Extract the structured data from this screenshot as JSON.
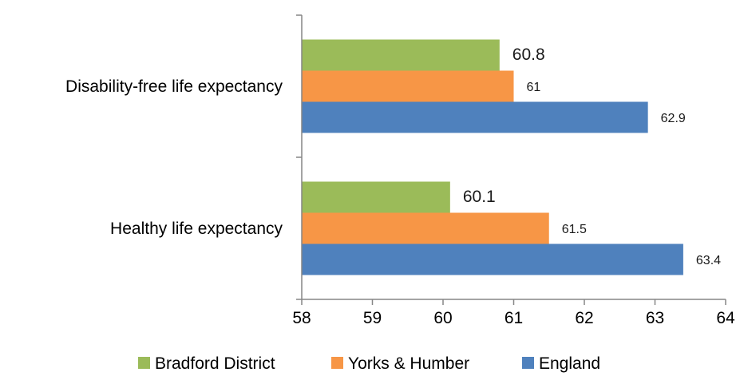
{
  "chart_data": {
    "type": "bar",
    "orientation": "horizontal",
    "categories": [
      "Disability-free life expectancy",
      "Healthy life expectancy"
    ],
    "series": [
      {
        "name": "Bradford District",
        "values": [
          60.8,
          60.1
        ],
        "data_labels": [
          "60.8",
          "60.1"
        ],
        "color": "#9bbb59"
      },
      {
        "name": "Yorks & Humber",
        "values": [
          61,
          61.5
        ],
        "data_labels": [
          "61",
          "61.5"
        ],
        "color": "#f79646"
      },
      {
        "name": "England",
        "values": [
          62.9,
          63.4
        ],
        "data_labels": [
          "62.9",
          "63.4"
        ],
        "color": "#4f81bd"
      }
    ],
    "xlim": [
      58,
      64
    ],
    "xticks": [
      "58",
      "59",
      "60",
      "61",
      "62",
      "63",
      "64"
    ],
    "title": "",
    "xlabel": "",
    "ylabel": "",
    "grid": false,
    "legend": {
      "position": "bottom",
      "entries": [
        "Bradford District",
        "Yorks & Humber",
        "England"
      ]
    }
  }
}
